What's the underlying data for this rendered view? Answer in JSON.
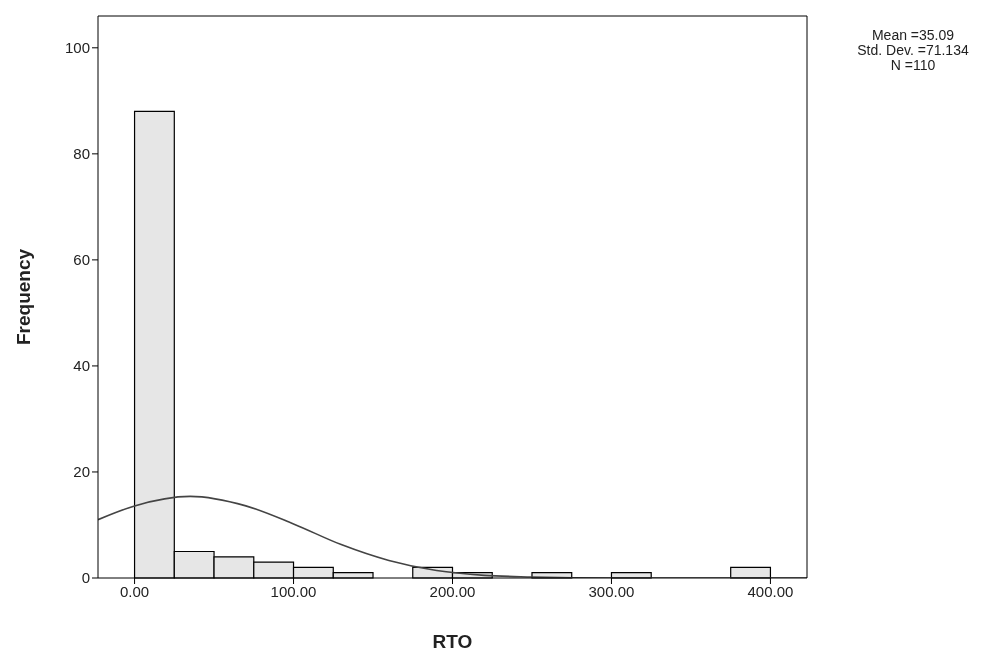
{
  "chart_data": {
    "type": "histogram",
    "xlabel": "RTO",
    "ylabel": "Frequency",
    "annotations": [
      "Mean =35.09",
      "Std. Dev. =71.134",
      "N =110"
    ],
    "series": [
      {
        "color": "#e6e6e6",
        "bins": [
          0,
          25,
          50,
          75,
          100,
          125,
          150,
          175,
          200,
          225,
          250,
          275,
          300,
          325,
          350,
          375,
          400
        ],
        "values": [
          88,
          5,
          4,
          3,
          2,
          1,
          0,
          2,
          1,
          0,
          1,
          0,
          1,
          0,
          0,
          2
        ]
      },
      {
        "type": "line",
        "color": "#444444",
        "x": [
          -23,
          0,
          35,
          70,
          100,
          130,
          160,
          190,
          220,
          250,
          300,
          423
        ],
        "values": [
          11,
          13.6,
          15.4,
          13.6,
          10.2,
          6.3,
          3.3,
          1.4,
          0.5,
          0.2,
          0,
          0
        ]
      }
    ],
    "xlim": [
      -23,
      423
    ],
    "ylim": [
      0,
      106
    ],
    "xticks": [
      {
        "value": 0,
        "label": "0.00"
      },
      {
        "value": 100,
        "label": "100.00"
      },
      {
        "value": 200,
        "label": "200.00"
      },
      {
        "value": 300,
        "label": "300.00"
      },
      {
        "value": 400,
        "label": "400.00"
      }
    ],
    "yticks": [
      0,
      20,
      40,
      60,
      80,
      100
    ],
    "grid": false
  }
}
